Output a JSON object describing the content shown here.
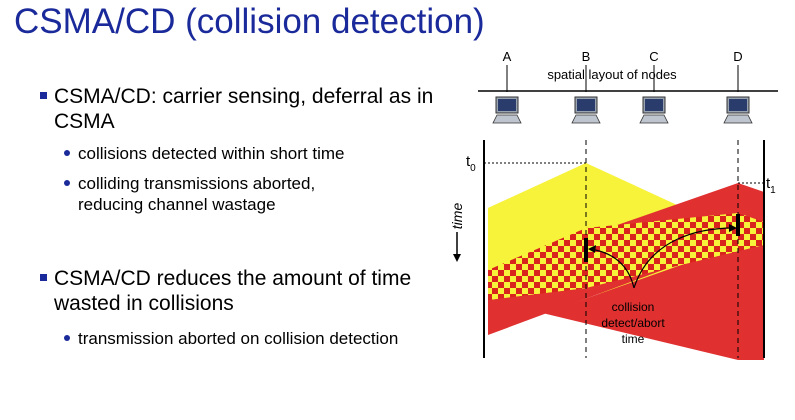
{
  "title": "CSMA/CD (collision detection)",
  "bullets": [
    {
      "text": "CSMA/CD: carrier sensing, deferral as in CSMA",
      "sub": [
        "collisions detected within short time",
        "colliding transmissions aborted, reducing channel wastage"
      ]
    },
    {
      "text": "CSMA/CD reduces the amount of time wasted in collisions",
      "sub": [
        "transmission aborted on collision detection"
      ]
    }
  ],
  "diagram": {
    "nodes": [
      "A",
      "B",
      "C",
      "D"
    ],
    "layout_label": "spatial layout of nodes",
    "time_label": "time",
    "t0": "t",
    "t0_sub": "0",
    "t1": "t",
    "t1_sub": "1",
    "collision_label_lines": [
      "collision",
      "detect/abort",
      "time"
    ],
    "colors": {
      "yellow": "#f7f23a",
      "red": "#e03030",
      "line": "#000000",
      "checker_dark": "#d9241e"
    }
  }
}
